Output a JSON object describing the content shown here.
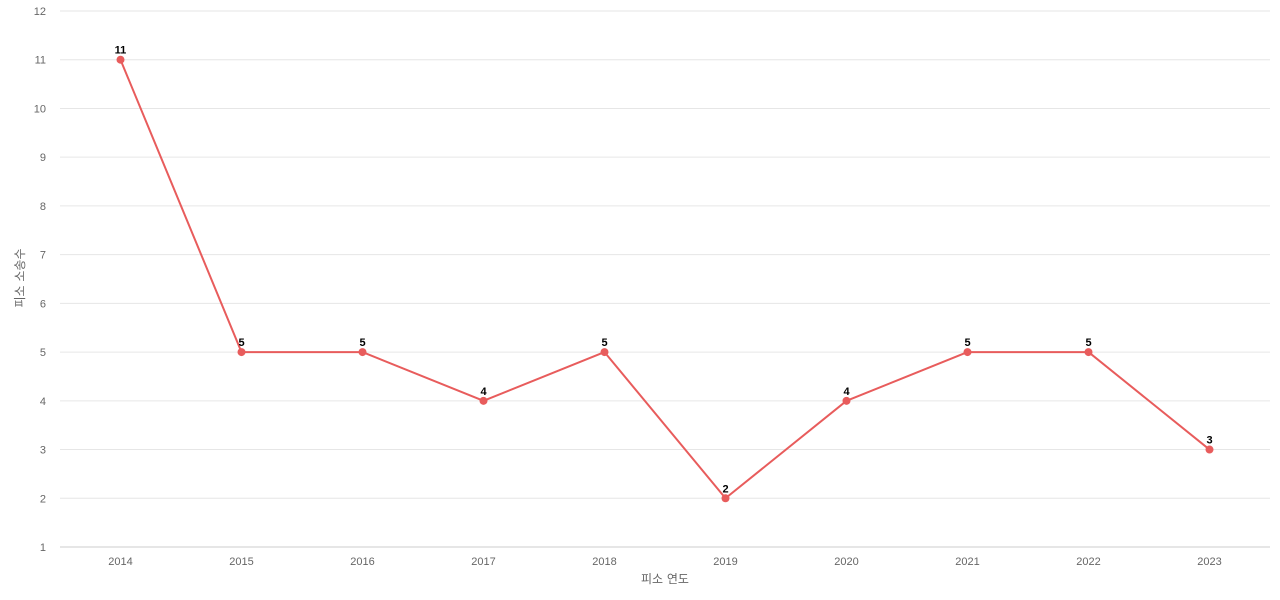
{
  "chart_data": {
    "type": "line",
    "title": "",
    "xlabel": "피소 연도",
    "ylabel": "피소 소송수",
    "categories": [
      "2014",
      "2015",
      "2016",
      "2017",
      "2018",
      "2019",
      "2020",
      "2021",
      "2022",
      "2023"
    ],
    "series": [
      {
        "values": [
          11,
          5,
          5,
          4,
          5,
          2,
          4,
          5,
          5,
          3
        ]
      }
    ],
    "ylim": [
      1,
      12
    ],
    "yticks": [
      "1",
      "2",
      "3",
      "4",
      "5",
      "6",
      "7",
      "8",
      "9",
      "10",
      "11",
      "12"
    ],
    "grid": true,
    "data_labels": true,
    "colors": {
      "series": "#e85c5c",
      "grid": "#e6e6e6",
      "label": "#000000"
    }
  }
}
